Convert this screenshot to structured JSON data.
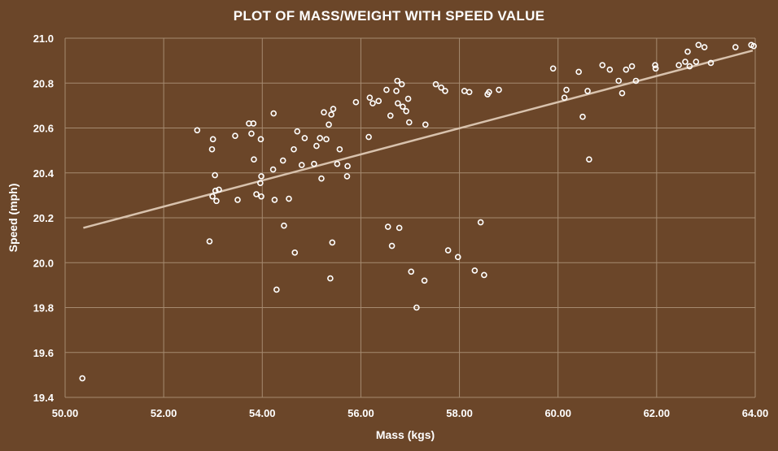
{
  "chart_data": {
    "type": "scatter",
    "title": "PLOT OF MASS/WEIGHT WITH SPEED VALUE",
    "xlabel": "Mass (kgs)",
    "ylabel": "Speed (mph)",
    "xlim": [
      50,
      64
    ],
    "ylim": [
      19.4,
      21.0
    ],
    "xticks": [
      "50.00",
      "52.00",
      "54.00",
      "56.00",
      "58.00",
      "60.00",
      "62.00",
      "64.00"
    ],
    "yticks": [
      "19.4",
      "19.6",
      "19.8",
      "20.0",
      "20.2",
      "20.4",
      "20.6",
      "20.8",
      "21.0"
    ],
    "grid": true,
    "trendline": {
      "type": "linear",
      "from": [
        50.37,
        20.155
      ],
      "to": [
        63.95,
        20.945
      ]
    },
    "colors": {
      "background": "#6b4629",
      "marker": "#ffffff",
      "trendline": "#d8c2ad",
      "grid": "#a58a70"
    },
    "points": [
      [
        50.35,
        19.485
      ],
      [
        52.68,
        20.59
      ],
      [
        52.93,
        20.095
      ],
      [
        52.98,
        20.505
      ],
      [
        52.99,
        20.295
      ],
      [
        53.0,
        20.55
      ],
      [
        53.04,
        20.39
      ],
      [
        53.05,
        20.32
      ],
      [
        53.07,
        20.275
      ],
      [
        53.12,
        20.325
      ],
      [
        53.45,
        20.565
      ],
      [
        53.5,
        20.28
      ],
      [
        53.73,
        20.62
      ],
      [
        53.78,
        20.575
      ],
      [
        53.82,
        20.62
      ],
      [
        53.83,
        20.46
      ],
      [
        53.88,
        20.305
      ],
      [
        53.96,
        20.355
      ],
      [
        53.97,
        20.55
      ],
      [
        53.98,
        20.385
      ],
      [
        53.98,
        20.295
      ],
      [
        54.22,
        20.415
      ],
      [
        54.23,
        20.665
      ],
      [
        54.25,
        20.28
      ],
      [
        54.29,
        19.88
      ],
      [
        54.42,
        20.455
      ],
      [
        54.44,
        20.165
      ],
      [
        54.54,
        20.285
      ],
      [
        54.64,
        20.505
      ],
      [
        54.66,
        20.045
      ],
      [
        54.71,
        20.585
      ],
      [
        54.8,
        20.435
      ],
      [
        54.86,
        20.555
      ],
      [
        55.05,
        20.44
      ],
      [
        55.1,
        20.52
      ],
      [
        55.17,
        20.555
      ],
      [
        55.2,
        20.375
      ],
      [
        55.25,
        20.67
      ],
      [
        55.3,
        20.55
      ],
      [
        55.35,
        20.615
      ],
      [
        55.38,
        19.93
      ],
      [
        55.4,
        20.66
      ],
      [
        55.42,
        20.09
      ],
      [
        55.44,
        20.685
      ],
      [
        55.52,
        20.44
      ],
      [
        55.57,
        20.505
      ],
      [
        55.72,
        20.385
      ],
      [
        55.73,
        20.43
      ],
      [
        55.9,
        20.715
      ],
      [
        56.16,
        20.56
      ],
      [
        56.18,
        20.735
      ],
      [
        56.24,
        20.71
      ],
      [
        56.36,
        20.72
      ],
      [
        56.52,
        20.77
      ],
      [
        56.55,
        20.16
      ],
      [
        56.6,
        20.655
      ],
      [
        56.63,
        20.075
      ],
      [
        56.72,
        20.765
      ],
      [
        56.74,
        20.81
      ],
      [
        56.75,
        20.71
      ],
      [
        56.78,
        20.155
      ],
      [
        56.83,
        20.795
      ],
      [
        56.85,
        20.695
      ],
      [
        56.92,
        20.675
      ],
      [
        56.96,
        20.73
      ],
      [
        56.98,
        20.625
      ],
      [
        57.02,
        19.96
      ],
      [
        57.13,
        19.8
      ],
      [
        57.29,
        19.92
      ],
      [
        57.31,
        20.615
      ],
      [
        57.52,
        20.795
      ],
      [
        57.63,
        20.78
      ],
      [
        57.71,
        20.765
      ],
      [
        57.77,
        20.055
      ],
      [
        57.97,
        20.025
      ],
      [
        58.1,
        20.765
      ],
      [
        58.2,
        20.76
      ],
      [
        58.31,
        19.965
      ],
      [
        58.43,
        20.18
      ],
      [
        58.5,
        19.945
      ],
      [
        58.57,
        20.75
      ],
      [
        58.6,
        20.76
      ],
      [
        58.8,
        20.77
      ],
      [
        59.9,
        20.865
      ],
      [
        60.13,
        20.735
      ],
      [
        60.17,
        20.77
      ],
      [
        60.42,
        20.85
      ],
      [
        60.5,
        20.65
      ],
      [
        60.6,
        20.765
      ],
      [
        60.63,
        20.46
      ],
      [
        60.9,
        20.88
      ],
      [
        61.05,
        20.86
      ],
      [
        61.23,
        20.81
      ],
      [
        61.3,
        20.755
      ],
      [
        61.38,
        20.86
      ],
      [
        61.5,
        20.875
      ],
      [
        61.58,
        20.81
      ],
      [
        61.97,
        20.88
      ],
      [
        61.98,
        20.865
      ],
      [
        62.45,
        20.88
      ],
      [
        62.58,
        20.895
      ],
      [
        62.63,
        20.94
      ],
      [
        62.67,
        20.875
      ],
      [
        62.8,
        20.895
      ],
      [
        62.85,
        20.97
      ],
      [
        62.97,
        20.96
      ],
      [
        63.1,
        20.89
      ],
      [
        63.6,
        20.96
      ],
      [
        63.92,
        20.97
      ],
      [
        63.97,
        20.965
      ]
    ]
  }
}
